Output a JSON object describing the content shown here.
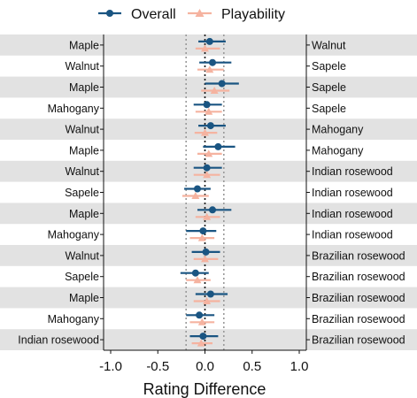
{
  "chart_data": {
    "type": "forest",
    "legend": {
      "position": "top",
      "entries": [
        {
          "name": "Overall",
          "color": "#1a5582",
          "marker": "circle"
        },
        {
          "name": "Playability",
          "color": "#f5b3a0",
          "marker": "triangle"
        }
      ]
    },
    "xlabel": "Rating Difference",
    "xlim": [
      -1.0,
      1.0
    ],
    "xticks": [
      "-1.0",
      "-0.5",
      "0.0",
      "0.5",
      "1.0"
    ],
    "xtick_values": [
      -1.0,
      -0.5,
      0.0,
      0.5,
      1.0
    ],
    "reference_lines": {
      "zero": 0.0,
      "dotted": [
        -0.2,
        0.2
      ]
    },
    "rows": [
      {
        "left": "Maple",
        "right": "Walnut",
        "overall": [
          0.05,
          -0.07,
          0.22
        ],
        "playability": [
          0.0,
          -0.1,
          0.16
        ]
      },
      {
        "left": "Walnut",
        "right": "Sapele",
        "overall": [
          0.08,
          -0.06,
          0.28
        ],
        "playability": [
          0.05,
          -0.08,
          0.2
        ]
      },
      {
        "left": "Maple",
        "right": "Sapele",
        "overall": [
          0.18,
          0.0,
          0.36
        ],
        "playability": [
          0.1,
          -0.04,
          0.26
        ]
      },
      {
        "left": "Mahogany",
        "right": "Sapele",
        "overall": [
          0.02,
          -0.12,
          0.18
        ],
        "playability": [
          0.04,
          -0.1,
          0.18
        ]
      },
      {
        "left": "Walnut",
        "right": "Mahogany",
        "overall": [
          0.06,
          -0.07,
          0.22
        ],
        "playability": [
          0.0,
          -0.11,
          0.13
        ]
      },
      {
        "left": "Maple",
        "right": "Mahogany",
        "overall": [
          0.14,
          -0.02,
          0.32
        ],
        "playability": [
          0.04,
          -0.08,
          0.18
        ]
      },
      {
        "left": "Walnut",
        "right": "Indian rosewood",
        "overall": [
          0.02,
          -0.12,
          0.18
        ],
        "playability": [
          0.02,
          -0.12,
          0.16
        ]
      },
      {
        "left": "Sapele",
        "right": "Indian rosewood",
        "overall": [
          -0.08,
          -0.22,
          0.06
        ],
        "playability": [
          -0.1,
          -0.24,
          0.04
        ]
      },
      {
        "left": "Maple",
        "right": "Indian rosewood",
        "overall": [
          0.08,
          -0.08,
          0.28
        ],
        "playability": [
          0.02,
          -0.1,
          0.16
        ]
      },
      {
        "left": "Mahogany",
        "right": "Indian rosewood",
        "overall": [
          -0.02,
          -0.2,
          0.12
        ],
        "playability": [
          -0.03,
          -0.16,
          0.1
        ]
      },
      {
        "left": "Walnut",
        "right": "Brazilian rosewood",
        "overall": [
          0.01,
          -0.14,
          0.16
        ],
        "playability": [
          0.0,
          -0.12,
          0.14
        ]
      },
      {
        "left": "Sapele",
        "right": "Brazilian rosewood",
        "overall": [
          -0.1,
          -0.26,
          0.04
        ],
        "playability": [
          -0.08,
          -0.2,
          0.06
        ]
      },
      {
        "left": "Maple",
        "right": "Brazilian rosewood",
        "overall": [
          0.06,
          -0.1,
          0.24
        ],
        "playability": [
          0.02,
          -0.12,
          0.16
        ]
      },
      {
        "left": "Mahogany",
        "right": "Brazilian rosewood",
        "overall": [
          -0.06,
          -0.2,
          0.1
        ],
        "playability": [
          -0.03,
          -0.16,
          0.1
        ]
      },
      {
        "left": "Indian rosewood",
        "right": "Brazilian rosewood",
        "overall": [
          -0.02,
          -0.16,
          0.14
        ],
        "playability": [
          -0.04,
          -0.14,
          0.08
        ]
      }
    ]
  }
}
